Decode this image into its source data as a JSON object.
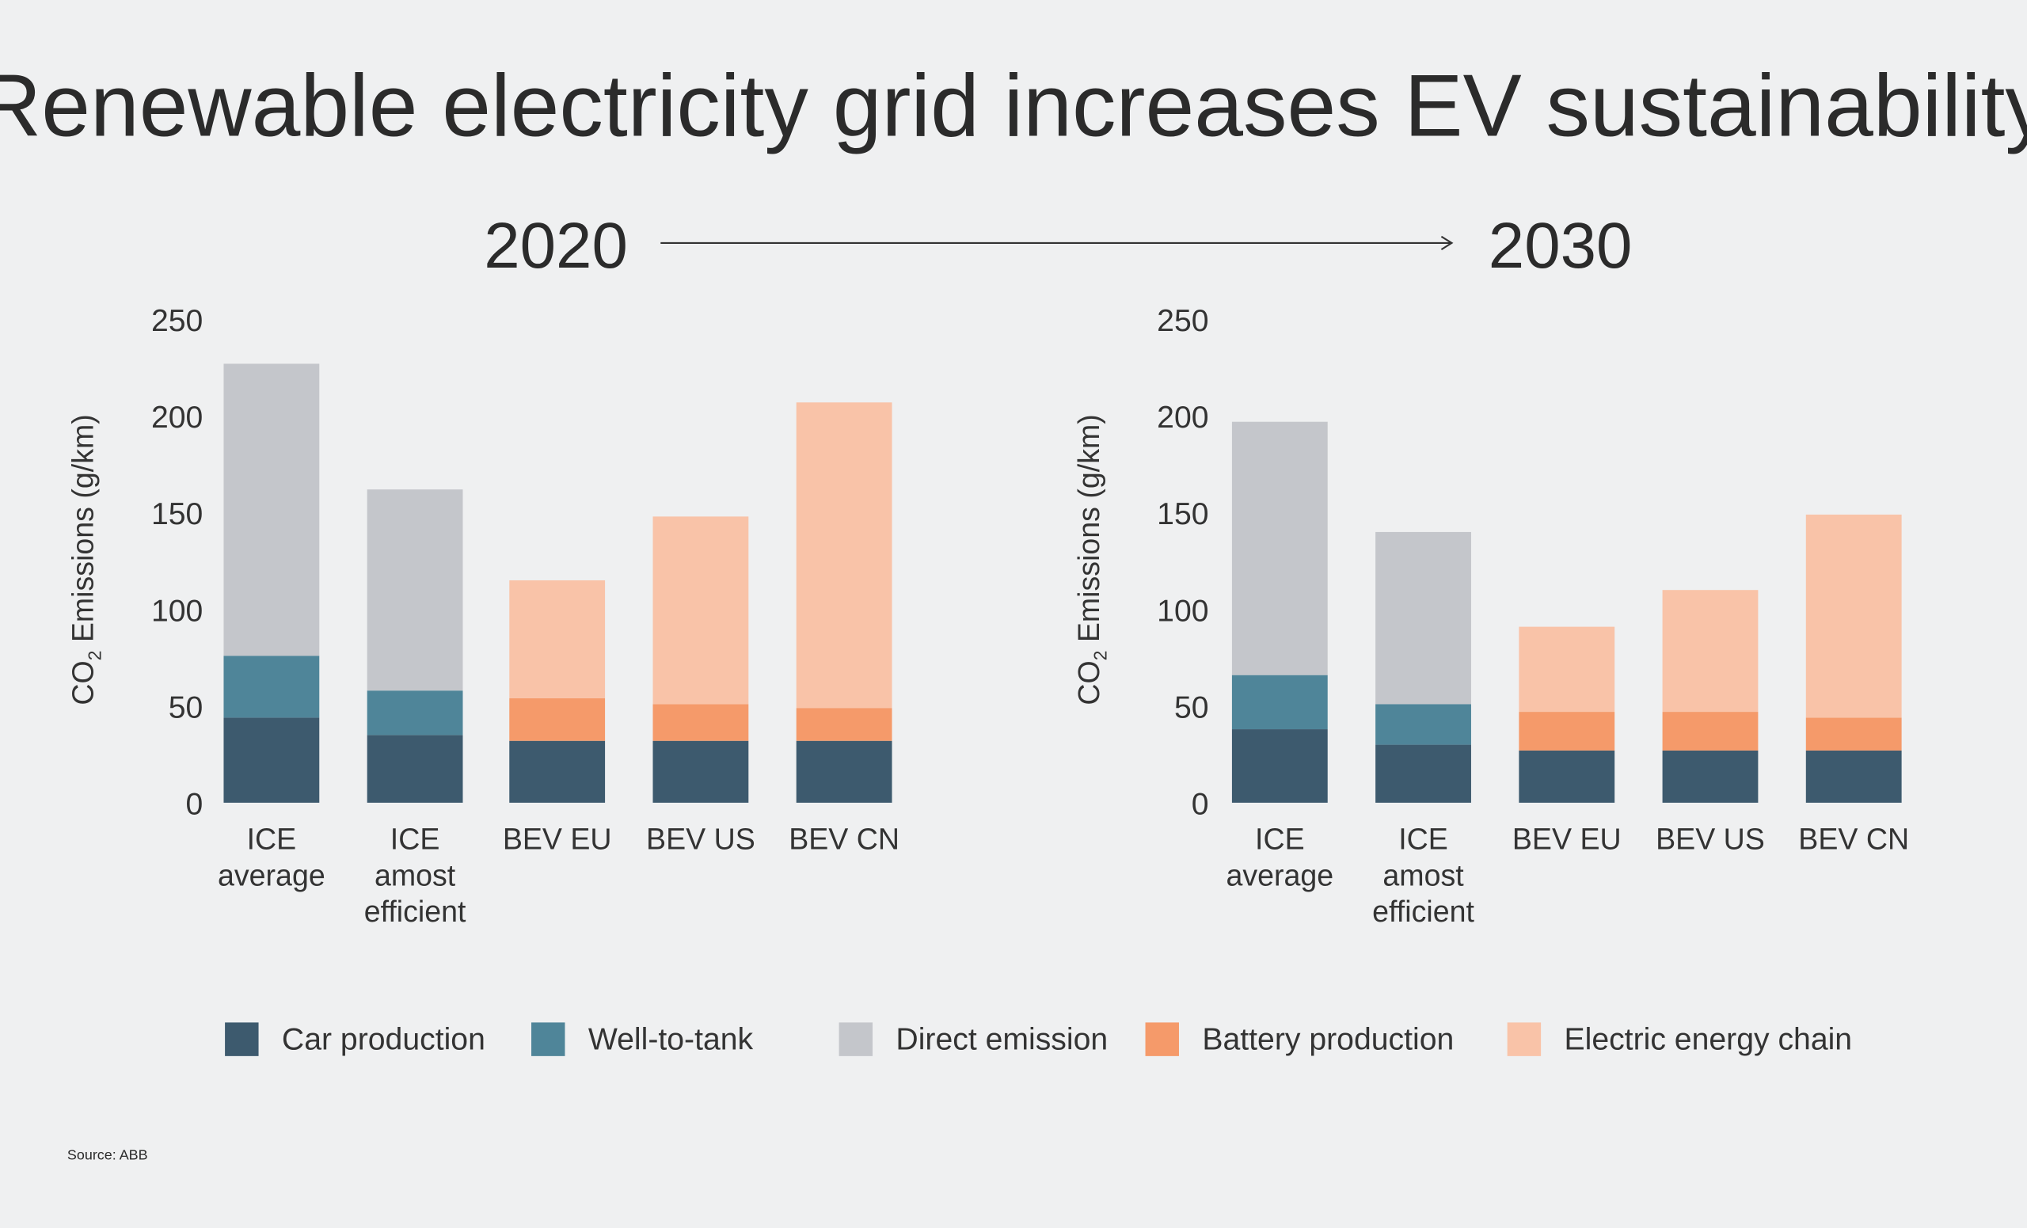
{
  "title": "Renewable electricity grid increases EV sustainability",
  "year_from": "2020",
  "year_to": "2030",
  "source": "Source: ABB",
  "colors": {
    "background": "#eff0f1",
    "Car production": "#3d5a6e",
    "Well-to-tank": "#4f8599",
    "Direct emission": "#c4c6cb",
    "Battery production": "#f59a6a",
    "Electric energy chain": "#f9c3a8"
  },
  "chart_data": [
    {
      "type": "bar",
      "stacked": true,
      "title": "2020",
      "ylabel": "CO2 Emissions (g/km)",
      "ylim": [
        0,
        250
      ],
      "yticks": [
        "0",
        "50",
        "100",
        "150",
        "200",
        "250"
      ],
      "categories": [
        [
          "ICE",
          "average"
        ],
        [
          "ICE",
          "amost",
          "efficient"
        ],
        [
          "BEV EU"
        ],
        [
          "BEV US"
        ],
        [
          "BEV CN"
        ]
      ],
      "series": [
        {
          "name": "Car production",
          "values": [
            44,
            35,
            32,
            32,
            32
          ]
        },
        {
          "name": "Well-to-tank",
          "values": [
            32,
            23,
            0,
            0,
            0
          ]
        },
        {
          "name": "Direct emission",
          "values": [
            151,
            104,
            0,
            0,
            0
          ]
        },
        {
          "name": "Battery production",
          "values": [
            0,
            0,
            22,
            19,
            17
          ]
        },
        {
          "name": "Electric energy chain",
          "values": [
            0,
            0,
            61,
            97,
            158
          ]
        }
      ]
    },
    {
      "type": "bar",
      "stacked": true,
      "title": "2030",
      "ylabel": "CO2 Emissions (g/km)",
      "ylim": [
        0,
        250
      ],
      "yticks": [
        "0",
        "50",
        "100",
        "150",
        "200",
        "250"
      ],
      "categories": [
        [
          "ICE",
          "average"
        ],
        [
          "ICE",
          "amost",
          "efficient"
        ],
        [
          "BEV EU"
        ],
        [
          "BEV US"
        ],
        [
          "BEV CN"
        ]
      ],
      "series": [
        {
          "name": "Car production",
          "values": [
            38,
            30,
            27,
            27,
            27
          ]
        },
        {
          "name": "Well-to-tank",
          "values": [
            28,
            21,
            0,
            0,
            0
          ]
        },
        {
          "name": "Direct emission",
          "values": [
            131,
            89,
            0,
            0,
            0
          ]
        },
        {
          "name": "Battery production",
          "values": [
            0,
            0,
            20,
            20,
            17
          ]
        },
        {
          "name": "Electric energy chain",
          "values": [
            0,
            0,
            44,
            63,
            105
          ]
        }
      ]
    }
  ],
  "legend": [
    "Car production",
    "Well-to-tank",
    "Direct emission",
    "Battery production",
    "Electric energy chain"
  ]
}
